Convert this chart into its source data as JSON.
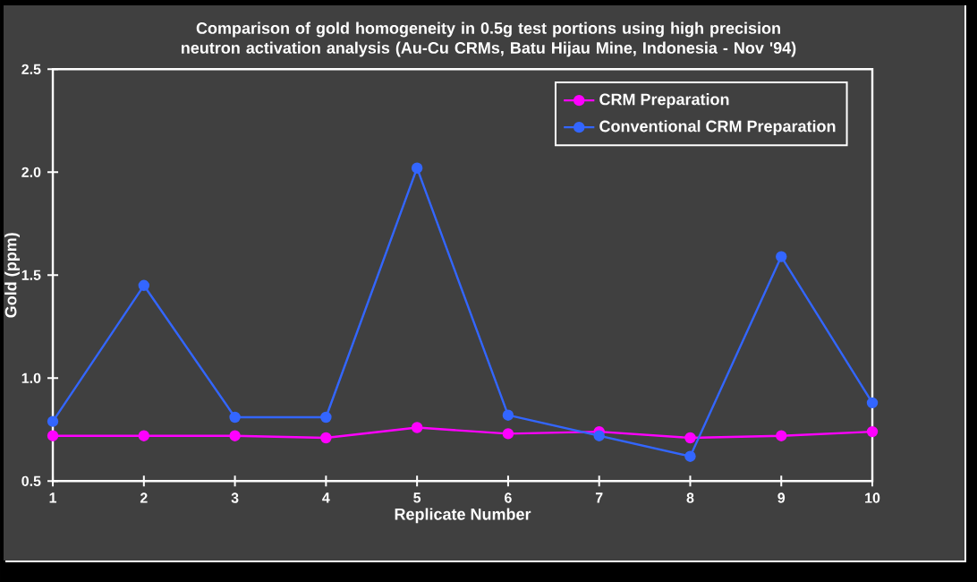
{
  "chart_data": {
    "type": "line",
    "title": "Comparison of gold homogeneity in 0.5g test portions using high precision neutron activation analysis (Au-Cu CRMs, Batu Hijau Mine, Indonesia - Nov '94)",
    "xlabel": "Replicate Number",
    "ylabel": "Gold (ppm)",
    "x": [
      1,
      2,
      3,
      4,
      5,
      6,
      7,
      8,
      9,
      10
    ],
    "series": [
      {
        "name": "CRM Preparation",
        "color": "#ff00ff",
        "values": [
          0.72,
          0.72,
          0.72,
          0.71,
          0.76,
          0.73,
          0.74,
          0.71,
          0.72,
          0.74
        ]
      },
      {
        "name": "Conventional CRM Preparation",
        "color": "#3366ff",
        "values": [
          0.79,
          1.45,
          0.81,
          0.81,
          2.02,
          0.82,
          0.72,
          0.62,
          1.59,
          0.88
        ]
      }
    ],
    "xlim": [
      1,
      10
    ],
    "xticks": [
      1,
      2,
      3,
      4,
      5,
      6,
      7,
      8,
      9,
      10
    ],
    "ylim": [
      0.5,
      2.5
    ],
    "yticks": [
      0.5,
      {
        "value": 1.0,
        "label": "1.0"
      },
      1.5,
      {
        "value": 2.0,
        "label": "2.0"
      },
      2.5
    ],
    "legend": "top right",
    "marker": "circle",
    "line_style": "solid",
    "grid": false
  }
}
